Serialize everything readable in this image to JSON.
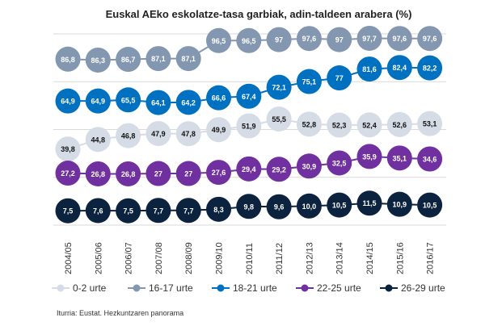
{
  "chart_data": {
    "type": "line",
    "title": "Euskal AEko eskolatze-tasa garbiak, adin-taldeen arabera (%)",
    "xlabel": "",
    "ylabel": "",
    "ylim": [
      0,
      100
    ],
    "grid": true,
    "legend_position": "bottom",
    "categories": [
      "2004/05",
      "2005/06",
      "2006/07",
      "2007/08",
      "2008/09",
      "2009/10",
      "2010/11",
      "2011/12",
      "2012/13",
      "2013/14",
      "2014/15",
      "2015/16",
      "2016/17"
    ],
    "series": [
      {
        "name": "0-2 urte",
        "color": "#d6dce5",
        "text_color": "#111111",
        "values": [
          39.8,
          44.8,
          46.8,
          47.9,
          47.8,
          49.9,
          51.9,
          55.5,
          52.8,
          52.3,
          52.4,
          52.6,
          53.1
        ],
        "labels": [
          "39,8",
          "44,8",
          "46,8",
          "47,9",
          "47,8",
          "49,9",
          "51,9",
          "55,5",
          "52,8",
          "52,3",
          "52,4",
          "52,6",
          "53,1"
        ]
      },
      {
        "name": "16-17 urte",
        "color": "#8497b0",
        "text_color": "#ffffff",
        "values": [
          86.8,
          86.3,
          86.7,
          87.1,
          87.1,
          96.5,
          96.5,
          97,
          97.6,
          97,
          97.7,
          97.6,
          97.6
        ],
        "labels": [
          "86,8",
          "86,3",
          "86,7",
          "87,1",
          "87,1",
          "96,5",
          "96,5",
          "97",
          "97,6",
          "97",
          "97,7",
          "97,6",
          "97,6"
        ]
      },
      {
        "name": "18-21 urte",
        "color": "#0070c0",
        "text_color": "#ffffff",
        "values": [
          64.9,
          64.9,
          65.5,
          64.1,
          64.2,
          66.6,
          67.4,
          72.1,
          75.1,
          77,
          81.6,
          82.4,
          82.2
        ],
        "labels": [
          "64,9",
          "64,9",
          "65,5",
          "64,1",
          "64,2",
          "66,6",
          "67,4",
          "72,1",
          "75,1",
          "77",
          "81,6",
          "82,4",
          "82,2"
        ]
      },
      {
        "name": "22-25 urte",
        "color": "#7030a0",
        "text_color": "#ffffff",
        "values": [
          27.2,
          26.8,
          26.8,
          27,
          27,
          27.6,
          29.4,
          29.2,
          30.9,
          32.5,
          35.9,
          35.1,
          34.6
        ],
        "labels": [
          "27,2",
          "26,8",
          "26,8",
          "27",
          "27",
          "27,6",
          "29,4",
          "29,2",
          "30,9",
          "32,5",
          "35,9",
          "35,1",
          "34,6"
        ]
      },
      {
        "name": "26-29 urte",
        "color": "#0c2340",
        "text_color": "#ffffff",
        "values": [
          7.5,
          7.6,
          7.5,
          7.7,
          7.7,
          8.3,
          9.8,
          9.6,
          10.0,
          10.5,
          11.5,
          10.9,
          10.5
        ],
        "labels": [
          "7,5",
          "7,6",
          "7,5",
          "7,7",
          "7,7",
          "8,3",
          "9,8",
          "9,6",
          "10,0",
          "10,5",
          "11,5",
          "10,9",
          "10,5"
        ]
      }
    ]
  },
  "source": "Iturria: Eustat. Hezkuntzaren panorama"
}
